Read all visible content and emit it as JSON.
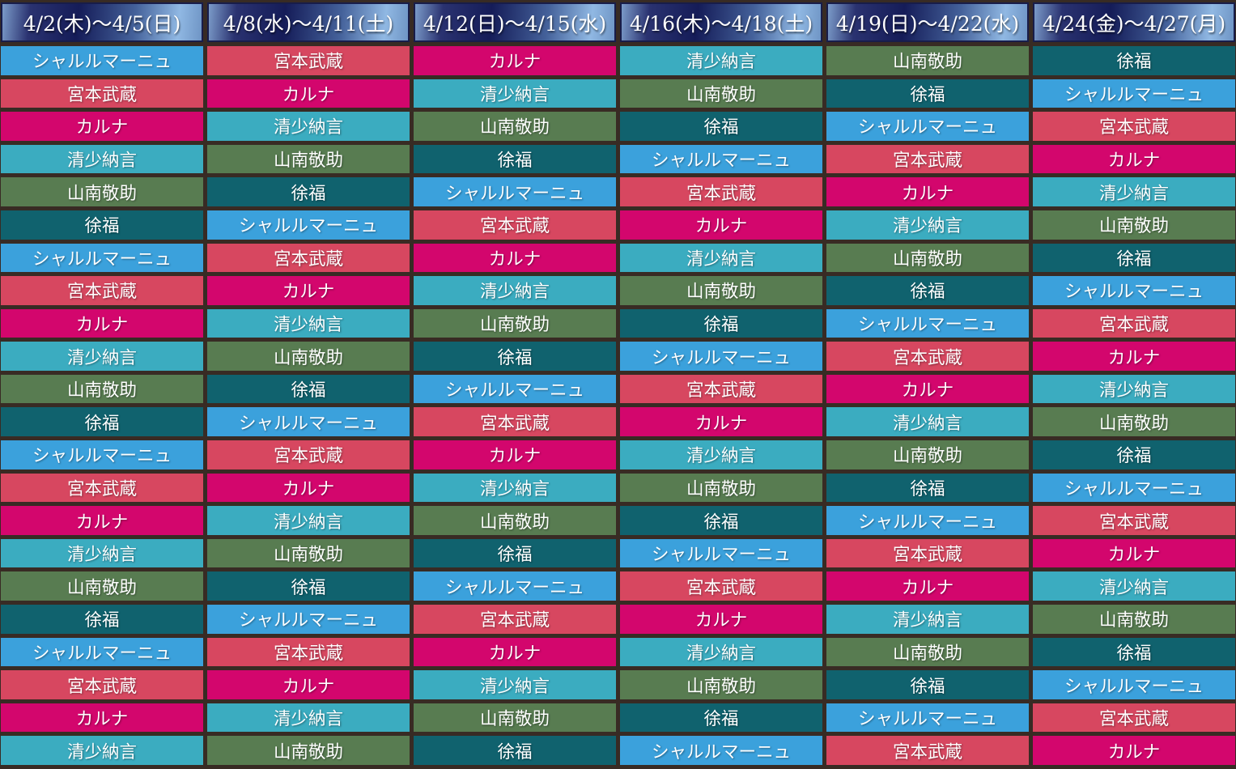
{
  "table": {
    "grid_color": "#382b24",
    "header": {
      "text_color": "#ffffff",
      "gradient_colors": [
        "#7b9bc9",
        "#2a3270",
        "#151c58",
        "#44619a",
        "#90b8e3",
        "#6f95c5"
      ],
      "columns": [
        "4/2(木)〜4/5(日)",
        "4/8(水)〜4/11(土)",
        "4/12(日)〜4/15(水)",
        "4/16(木)〜4/18(土)",
        "4/19(日)〜4/22(水)",
        "4/24(金)〜4/27(月)"
      ]
    },
    "servants": [
      {
        "name": "シャルルマーニュ",
        "color": "#3ba1dc"
      },
      {
        "name": "宮本武蔵",
        "color": "#d74760"
      },
      {
        "name": "カルナ",
        "color": "#d3066d"
      },
      {
        "name": "清少納言",
        "color": "#3bacc0"
      },
      {
        "name": "山南敬助",
        "color": "#587c51"
      },
      {
        "name": "徐福",
        "color": "#10626e"
      }
    ],
    "rows": [
      [
        "シャルルマーニュ",
        "宮本武蔵",
        "カルナ",
        "清少納言",
        "山南敬助",
        "徐福"
      ],
      [
        "宮本武蔵",
        "カルナ",
        "清少納言",
        "山南敬助",
        "徐福",
        "シャルルマーニュ"
      ],
      [
        "カルナ",
        "清少納言",
        "山南敬助",
        "徐福",
        "シャルルマーニュ",
        "宮本武蔵"
      ],
      [
        "清少納言",
        "山南敬助",
        "徐福",
        "シャルルマーニュ",
        "宮本武蔵",
        "カルナ"
      ],
      [
        "山南敬助",
        "徐福",
        "シャルルマーニュ",
        "宮本武蔵",
        "カルナ",
        "清少納言"
      ],
      [
        "徐福",
        "シャルルマーニュ",
        "宮本武蔵",
        "カルナ",
        "清少納言",
        "山南敬助"
      ],
      [
        "シャルルマーニュ",
        "宮本武蔵",
        "カルナ",
        "清少納言",
        "山南敬助",
        "徐福"
      ],
      [
        "宮本武蔵",
        "カルナ",
        "清少納言",
        "山南敬助",
        "徐福",
        "シャルルマーニュ"
      ],
      [
        "カルナ",
        "清少納言",
        "山南敬助",
        "徐福",
        "シャルルマーニュ",
        "宮本武蔵"
      ],
      [
        "清少納言",
        "山南敬助",
        "徐福",
        "シャルルマーニュ",
        "宮本武蔵",
        "カルナ"
      ],
      [
        "山南敬助",
        "徐福",
        "シャルルマーニュ",
        "宮本武蔵",
        "カルナ",
        "清少納言"
      ],
      [
        "徐福",
        "シャルルマーニュ",
        "宮本武蔵",
        "カルナ",
        "清少納言",
        "山南敬助"
      ],
      [
        "シャルルマーニュ",
        "宮本武蔵",
        "カルナ",
        "清少納言",
        "山南敬助",
        "徐福"
      ],
      [
        "宮本武蔵",
        "カルナ",
        "清少納言",
        "山南敬助",
        "徐福",
        "シャルルマーニュ"
      ],
      [
        "カルナ",
        "清少納言",
        "山南敬助",
        "徐福",
        "シャルルマーニュ",
        "宮本武蔵"
      ],
      [
        "清少納言",
        "山南敬助",
        "徐福",
        "シャルルマーニュ",
        "宮本武蔵",
        "カルナ"
      ],
      [
        "山南敬助",
        "徐福",
        "シャルルマーニュ",
        "宮本武蔵",
        "カルナ",
        "清少納言"
      ],
      [
        "徐福",
        "シャルルマーニュ",
        "宮本武蔵",
        "カルナ",
        "清少納言",
        "山南敬助"
      ],
      [
        "シャルルマーニュ",
        "宮本武蔵",
        "カルナ",
        "清少納言",
        "山南敬助",
        "徐福"
      ],
      [
        "宮本武蔵",
        "カルナ",
        "清少納言",
        "山南敬助",
        "徐福",
        "シャルルマーニュ"
      ],
      [
        "カルナ",
        "清少納言",
        "山南敬助",
        "徐福",
        "シャルルマーニュ",
        "宮本武蔵"
      ],
      [
        "清少納言",
        "山南敬助",
        "徐福",
        "シャルルマーニュ",
        "宮本武蔵",
        "カルナ"
      ]
    ]
  }
}
